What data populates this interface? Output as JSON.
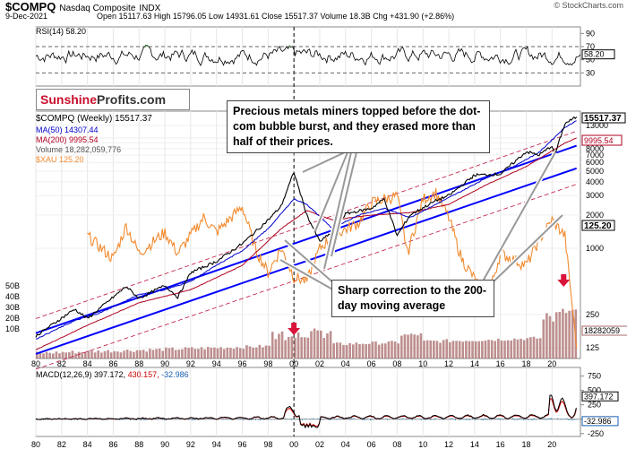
{
  "header": {
    "symbol": "$COMPQ",
    "name": "Nasdaq Composite",
    "exchange": "INDX",
    "date": "9-Dec-2021",
    "quote": "Open 15117.63  High 15796.05  Low 14931.61  Close 15517.37  Volume 18.3B  Chg +431.90 (+2.86%)",
    "source": "© StockCharts.com"
  },
  "logo": {
    "part1": "Sunshine",
    "part2": "Profits.com"
  },
  "annotations": {
    "miners": "Precious metals miners topped before the dot-com bubble burst, and they erased more than half of their prices.",
    "correction": "Sharp correction to the 200-day moving average"
  },
  "legend": {
    "main": "$COMPQ (Weekly) 15517.37",
    "ma50": "MA(50) 14307.44",
    "ma200": "MA(200) 9995.54",
    "volume": "Volume 18,282,059,776",
    "xau": "$XAU 125.20"
  },
  "rsi_label": "RSI(14) 58.20",
  "macd_label": {
    "main": "MACD(12,26,9) 397.172,",
    "signal": "430.157,",
    "hist": "-32.986"
  },
  "colors": {
    "price": "#000000",
    "ma50": "#0000cc",
    "ma200": "#b00020",
    "xau": "#f28a2e",
    "volume": "#a86a6a",
    "trend": "#0000ff",
    "rsi_fill": "#4caf50",
    "arrow": "#d9143a"
  },
  "chart_data": [
    {
      "type": "line",
      "title": "RSI(14) 58.20",
      "ylim": [
        10,
        100
      ],
      "ticks": [
        90,
        70,
        50,
        30
      ],
      "reference_lines": [
        70,
        30
      ],
      "last_value": "58.20"
    },
    {
      "type": "line",
      "title": "$COMPQ (Weekly) 15517.37",
      "scale": "log",
      "ylim": [
        100,
        17500
      ],
      "y_ticks_right": [
        "13000",
        "10000",
        "9000",
        "8000",
        "7000",
        "6000",
        "5000",
        "4000",
        "3000",
        "2000",
        "1000",
        "250",
        "125"
      ],
      "x": [
        "80",
        "82",
        "84",
        "86",
        "88",
        "90",
        "92",
        "94",
        "96",
        "98",
        "00",
        "02",
        "04",
        "06",
        "08",
        "10",
        "12",
        "14",
        "16",
        "18",
        "20"
      ],
      "series": [
        {
          "name": "$COMPQ (Weekly) 15517.37",
          "values": [
            [
              1980,
              160
            ],
            [
              1983,
              280
            ],
            [
              1984,
              230
            ],
            [
              1987,
              450
            ],
            [
              1988,
              350
            ],
            [
              1990,
              460
            ],
            [
              1991,
              360
            ],
            [
              1992,
              600
            ],
            [
              1994,
              760
            ],
            [
              1996,
              1100
            ],
            [
              1998,
              1800
            ],
            [
              1999,
              2400
            ],
            [
              2000,
              4900
            ],
            [
              2001,
              2000
            ],
            [
              2002,
              1150
            ],
            [
              2003,
              1400
            ],
            [
              2004,
              2050
            ],
            [
              2006,
              2300
            ],
            [
              2007,
              2800
            ],
            [
              2008,
              1300
            ],
            [
              2009,
              2000
            ],
            [
              2011,
              2700
            ],
            [
              2012,
              3000
            ],
            [
              2014,
              4600
            ],
            [
              2016,
              4700
            ],
            [
              2018,
              7500
            ],
            [
              2019,
              7000
            ],
            [
              2020,
              8500
            ],
            [
              2020.2,
              6900
            ],
            [
              2021,
              13500
            ],
            [
              2021.9,
              15517.37
            ]
          ]
        },
        {
          "name": "MA(50) 14307.44",
          "values": [
            [
              1980,
              150
            ],
            [
              1983,
              220
            ],
            [
              1985,
              260
            ],
            [
              1988,
              380
            ],
            [
              1990,
              420
            ],
            [
              1992,
              500
            ],
            [
              1994,
              700
            ],
            [
              1996,
              950
            ],
            [
              1998,
              1500
            ],
            [
              2000,
              2800
            ],
            [
              2001,
              2500
            ],
            [
              2003,
              1500
            ],
            [
              2005,
              2000
            ],
            [
              2007,
              2300
            ],
            [
              2009,
              1900
            ],
            [
              2011,
              2500
            ],
            [
              2013,
              3300
            ],
            [
              2015,
              4400
            ],
            [
              2017,
              5500
            ],
            [
              2019,
              7400
            ],
            [
              2021,
              12500
            ],
            [
              2021.9,
              14307.44
            ]
          ]
        },
        {
          "name": "MA(200) 9995.54",
          "values": [
            [
              1980,
              120
            ],
            [
              1984,
              200
            ],
            [
              1988,
              320
            ],
            [
              1992,
              420
            ],
            [
              1996,
              700
            ],
            [
              1999,
              1500
            ],
            [
              2001,
              2200
            ],
            [
              2003,
              1800
            ],
            [
              2006,
              2000
            ],
            [
              2009,
              2100
            ],
            [
              2012,
              2500
            ],
            [
              2015,
              3800
            ],
            [
              2018,
              5500
            ],
            [
              2021,
              9000
            ],
            [
              2021.9,
              9995.54
            ]
          ]
        },
        {
          "name": "$XAU 125.20",
          "values": [
            [
              1984,
              1300
            ],
            [
              1986,
              800
            ],
            [
              1987,
              1600
            ],
            [
              1988,
              900
            ],
            [
              1990,
              1400
            ],
            [
              1991,
              900
            ],
            [
              1993,
              1900
            ],
            [
              1994,
              1400
            ],
            [
              1996,
              2400
            ],
            [
              1997,
              1000
            ],
            [
              1998,
              600
            ],
            [
              1999,
              1000
            ],
            [
              2000,
              550
            ],
            [
              2001,
              500
            ],
            [
              2002,
              1000
            ],
            [
              2003,
              1300
            ],
            [
              2005,
              1700
            ],
            [
              2006,
              2600
            ],
            [
              2008,
              3000
            ],
            [
              2008.8,
              900
            ],
            [
              2010,
              2800
            ],
            [
              2011,
              3200
            ],
            [
              2012,
              1900
            ],
            [
              2013,
              800
            ],
            [
              2015,
              350
            ],
            [
              2016,
              900
            ],
            [
              2018,
              700
            ],
            [
              2019,
              1200
            ],
            [
              2020,
              1800
            ],
            [
              2021,
              1300
            ],
            [
              2021.9,
              125.2
            ]
          ]
        }
      ],
      "volume_axis": [
        "50B",
        "40B",
        "30B",
        "20B",
        "10B"
      ],
      "volume_last": "18282059",
      "last_labels": {
        "price": "15517.37",
        "ma50": "14307.44",
        "ma200": "9995.54",
        "xau": "125.20"
      }
    },
    {
      "type": "line",
      "title": "MACD(12,26,9) 397.172, 430.157, -32.986",
      "ylim": [
        -300,
        900
      ],
      "ticks": [
        750,
        500,
        250,
        0,
        -250
      ],
      "last_values": [
        "397.172",
        "-32.986"
      ]
    }
  ]
}
